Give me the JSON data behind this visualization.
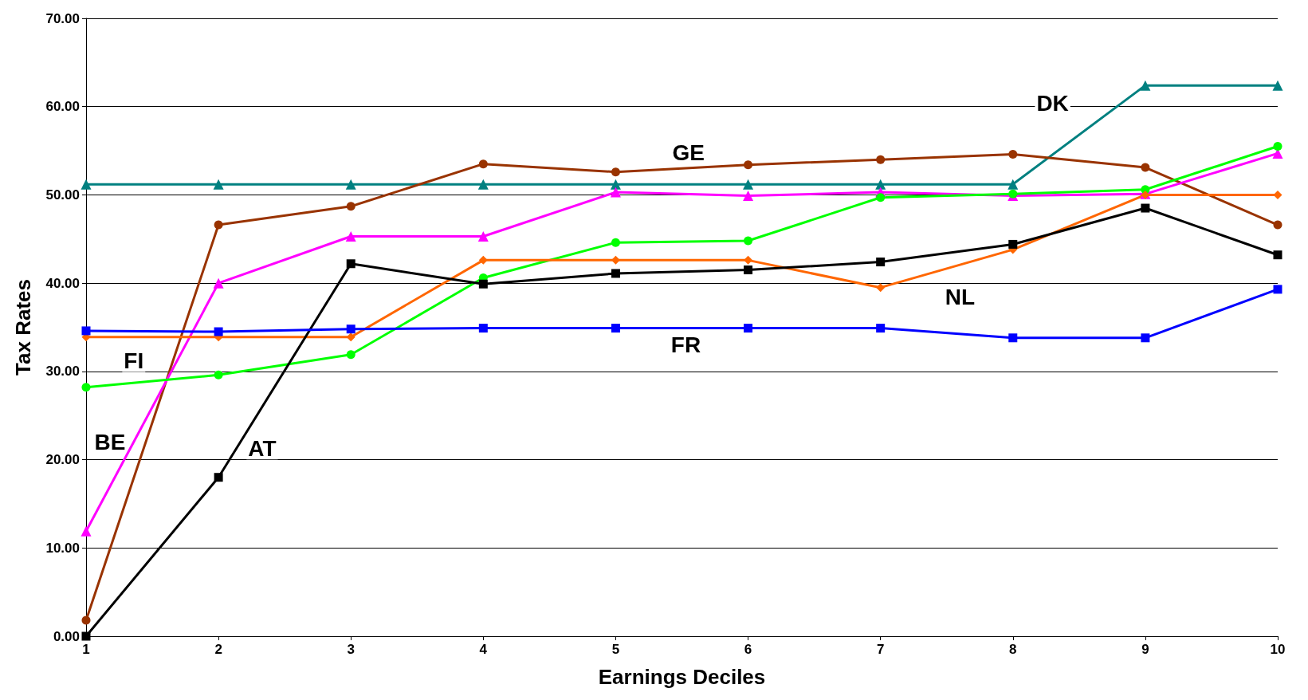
{
  "chart_data": {
    "type": "line",
    "xlabel": "Earnings Deciles",
    "ylabel": "Tax Rates",
    "x": [
      1,
      2,
      3,
      4,
      5,
      6,
      7,
      8,
      9,
      10
    ],
    "xlim": [
      1,
      10
    ],
    "xticks": [
      1,
      2,
      3,
      4,
      5,
      6,
      7,
      8,
      9,
      10
    ],
    "ylim": [
      0,
      70
    ],
    "yticks": [
      {
        "value": 0,
        "label": "0.00"
      },
      {
        "value": 10,
        "label": "10.00"
      },
      {
        "value": 20,
        "label": "20.00"
      },
      {
        "value": 30,
        "label": "30.00"
      },
      {
        "value": 40,
        "label": "40.00"
      },
      {
        "value": 50,
        "label": "50.00"
      },
      {
        "value": 60,
        "label": "60.00"
      },
      {
        "value": 70,
        "label": "70.00"
      }
    ],
    "grid": "y",
    "legend": false,
    "line_style": "solid",
    "series": [
      {
        "name": "DK",
        "color": "#008080",
        "marker": "triangle",
        "values": [
          51.2,
          51.2,
          51.2,
          51.2,
          51.2,
          51.2,
          51.2,
          51.2,
          62.4,
          62.4
        ]
      },
      {
        "name": "GE",
        "color": "#993300",
        "marker": "circle",
        "values": [
          1.8,
          46.6,
          48.7,
          53.5,
          52.6,
          53.4,
          54.0,
          54.6,
          53.1,
          46.6
        ]
      },
      {
        "name": "BE",
        "color": "#ff00ff",
        "marker": "triangle",
        "values": [
          11.9,
          40.0,
          45.3,
          45.3,
          50.3,
          49.9,
          50.3,
          49.9,
          50.1,
          54.7
        ]
      },
      {
        "name": "FI",
        "color": "#00ff00",
        "marker": "circle",
        "values": [
          28.2,
          29.6,
          31.9,
          40.6,
          44.6,
          44.8,
          49.7,
          50.1,
          50.6,
          55.5
        ]
      },
      {
        "name": "NL",
        "color": "#ff6600",
        "marker": "diamond",
        "values": [
          33.9,
          33.9,
          33.9,
          42.6,
          42.6,
          42.6,
          39.5,
          43.8,
          50.0,
          50.0
        ]
      },
      {
        "name": "AT",
        "color": "#000000",
        "marker": "square",
        "values": [
          0,
          18.0,
          42.2,
          39.9,
          41.1,
          41.5,
          42.4,
          44.4,
          48.5,
          43.2
        ]
      },
      {
        "name": "FR",
        "color": "#0000ff",
        "marker": "square",
        "values": [
          34.6,
          34.5,
          34.8,
          34.9,
          34.9,
          34.9,
          34.9,
          33.8,
          33.8,
          39.3
        ]
      }
    ]
  }
}
